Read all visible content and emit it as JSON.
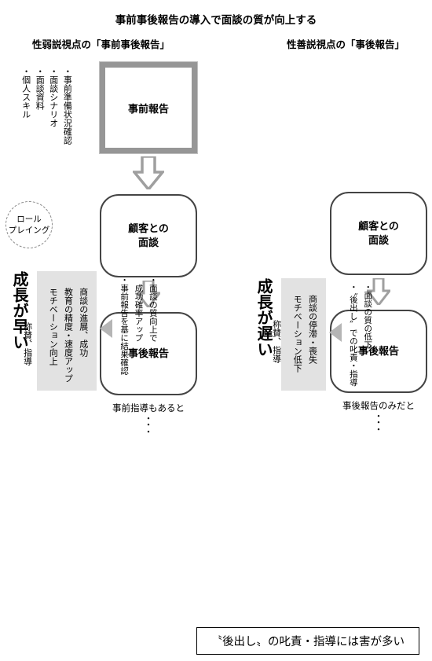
{
  "title": "事前事後報告の導入で面談の質が向上する",
  "left": {
    "subtitle": "性弱説視点の「事前事後報告」",
    "box_pre": "事前報告",
    "pre_sidelabels": [
      "・事前準備状況確認",
      "・面談シナリオ",
      "・面談資料",
      "・個人スキル"
    ],
    "roleplay": "ロール\nプレイング",
    "box_mid": "顧客との\n面談",
    "box_post": "事後報告",
    "post_sidelabels": [
      "・面談の結果確認",
      "・事前指導の",
      "　結果確認と",
      "　称賛、指導"
    ],
    "below": "事前指導もあると",
    "bigv": "成長が早い",
    "outbox_items": [
      "　商談の進展、成功",
      "　教育の精度・速度アップ",
      "　モチベーション向上"
    ],
    "reasons": [
      "・面談の質向上で",
      "　成功確率アップ",
      "・事前報告を基に結果確認"
    ]
  },
  "right": {
    "subtitle": "性善説視点の「事後報告」",
    "box_mid": "顧客との\n面談",
    "box_post": "事後報告",
    "post_sidelabels": [
      "・面談の結果確認",
      "・結果に基づく",
      "　称賛、指導"
    ],
    "below": "事後報告のみだと",
    "bigv": "成長が遅い",
    "outbox_items": [
      "　商談の停滞・喪失",
      "　モチベーション低下"
    ],
    "reasons": [
      "・面談の質の低下",
      "・〝後出し〟での叱責・指導"
    ]
  },
  "footer": "〝後出し〟の叱責・指導には害が多い",
  "colors": {
    "pre_border": "#969696",
    "round_border": "#444444",
    "arrow_fill": "#9f9f9f",
    "outbox_bg": "#e2e2e2",
    "tri_fill": "#b5b5b5"
  }
}
